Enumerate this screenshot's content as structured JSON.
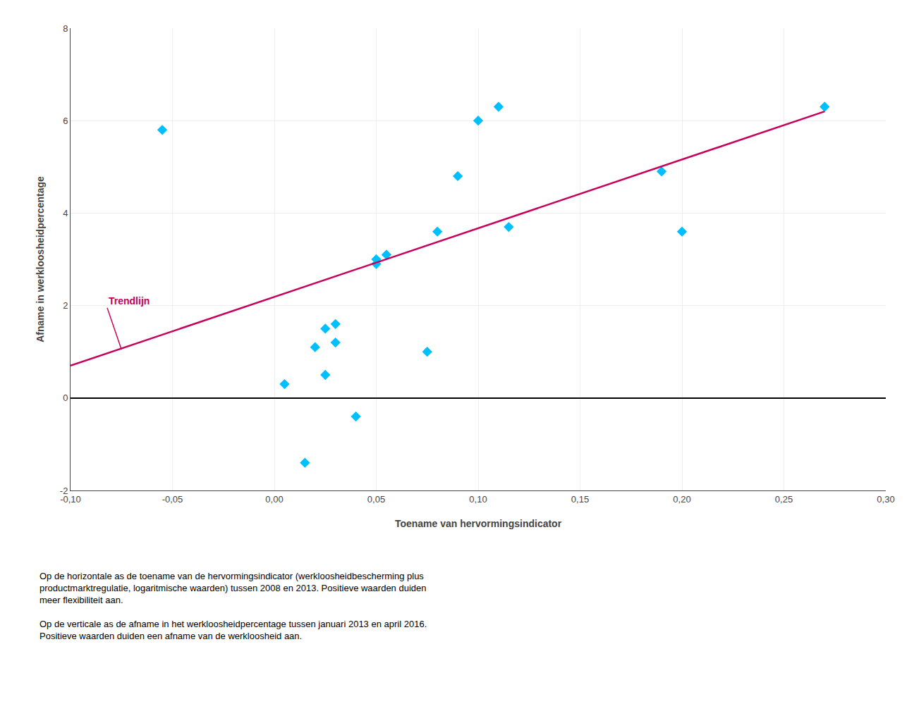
{
  "chart_data": {
    "type": "scatter",
    "x_label": "Toename van hervormingsindicator",
    "y_label": "Afname in werkloosheidpercentage",
    "series": [
      {
        "type": "scatter",
        "color": "#00BFFF",
        "marker": "diamond",
        "x": [
          -0.055,
          0.005,
          0.015,
          0.02,
          0.025,
          0.025,
          0.03,
          0.03,
          0.04,
          0.05,
          0.05,
          0.055,
          0.075,
          0.08,
          0.09,
          0.1,
          0.11,
          0.115,
          0.19,
          0.2,
          0.27
        ],
        "values": [
          5.8,
          0.3,
          -1.4,
          1.1,
          0.5,
          1.5,
          1.6,
          1.2,
          -0.4,
          2.9,
          3.0,
          3.1,
          1.0,
          3.6,
          4.8,
          6.0,
          6.3,
          3.7,
          4.9,
          3.6,
          6.3
        ]
      },
      {
        "type": "line",
        "color": "#C8005A",
        "line_style": "solid",
        "x": [
          -0.1,
          0.27
        ],
        "values": [
          0.7,
          6.2
        ]
      }
    ],
    "xlim": [
      -0.1,
      0.3
    ],
    "ylim": [
      -2.0,
      8.0
    ],
    "xticks": [
      {
        "value": -0.1,
        "label": "-0,10"
      },
      {
        "value": -0.05,
        "label": "-0,05"
      },
      {
        "value": 0.0,
        "label": "0,00"
      },
      {
        "value": 0.05,
        "label": "0,05"
      },
      {
        "value": 0.1,
        "label": "0,10"
      },
      {
        "value": 0.15,
        "label": "0,15"
      },
      {
        "value": 0.2,
        "label": "0,20"
      },
      {
        "value": 0.25,
        "label": "0,25"
      },
      {
        "value": 0.3,
        "label": "0,30"
      }
    ],
    "yticks": [
      -2,
      0,
      2,
      4,
      6,
      8
    ],
    "grid": true,
    "annotations": [
      {
        "text": "Trendlijn",
        "color": "#C8005A",
        "x": -0.075,
        "y": 1.05,
        "text_x": -0.082,
        "text_y": 1.95
      }
    ],
    "footnotes": [
      [
        "Op de horizontale as de toename van de hervormingsindicator (werkloosheidbescherming plus",
        "productmarktregulatie, logaritmische waarden) tussen 2008 en 2013. Positieve waarden duiden",
        "meer flexibiliteit aan."
      ],
      [
        "Op de verticale as de afname in het werkloosheidpercentage tussen januari 2013 en april 2016.",
        "Positieve waarden duiden een afname van de werkloosheid aan."
      ]
    ]
  }
}
